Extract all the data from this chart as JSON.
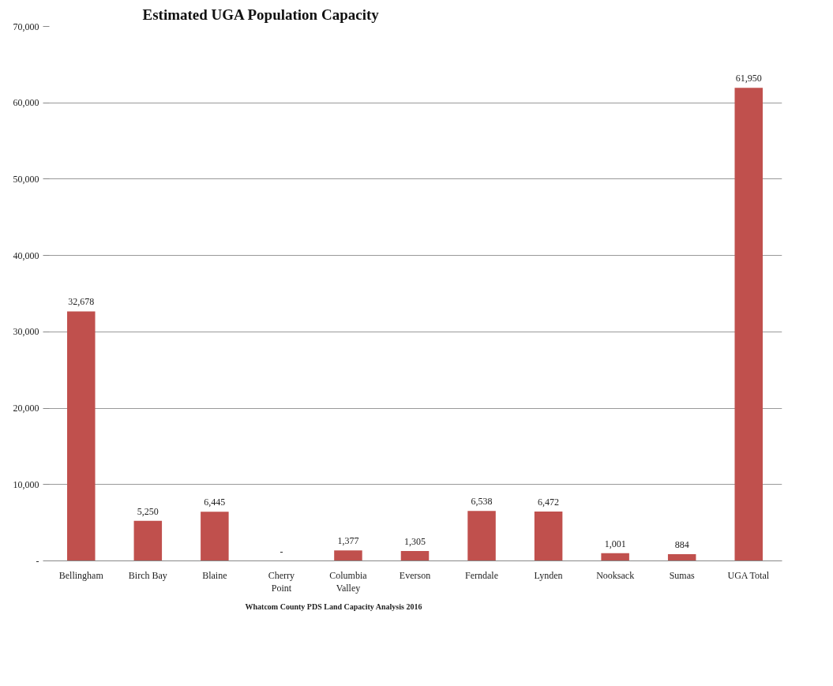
{
  "chart_data": {
    "type": "bar",
    "title": "Estimated UGA Population Capacity",
    "categories": [
      "Bellingham",
      "Birch Bay",
      "Blaine",
      "Cherry Point",
      "Columbia Valley",
      "Everson",
      "Ferndale",
      "Lynden",
      "Nooksack",
      "Sumas",
      "UGA Total"
    ],
    "values": [
      32678,
      5250,
      6445,
      0,
      1377,
      1305,
      6538,
      6472,
      1001,
      884,
      61950
    ],
    "value_labels": [
      "32,678",
      "5,250",
      "6,445",
      "-",
      "1,377",
      "1,305",
      "6,538",
      "6,472",
      "1,001",
      "884",
      "61,950"
    ],
    "color": "#c0504d",
    "ylim": [
      0,
      70000
    ],
    "yticks": [
      {
        "value": 0,
        "label": "-"
      },
      {
        "value": 10000,
        "label": "10,000"
      },
      {
        "value": 20000,
        "label": "20,000"
      },
      {
        "value": 30000,
        "label": "30,000"
      },
      {
        "value": 40000,
        "label": "40,000"
      },
      {
        "value": 50000,
        "label": "50,000"
      },
      {
        "value": 60000,
        "label": "60,000"
      },
      {
        "value": 70000,
        "label": "70,000"
      }
    ],
    "grid": "y",
    "annotations": [
      "Whatcom County PDS Land Capacity Analysis 2016"
    ]
  }
}
